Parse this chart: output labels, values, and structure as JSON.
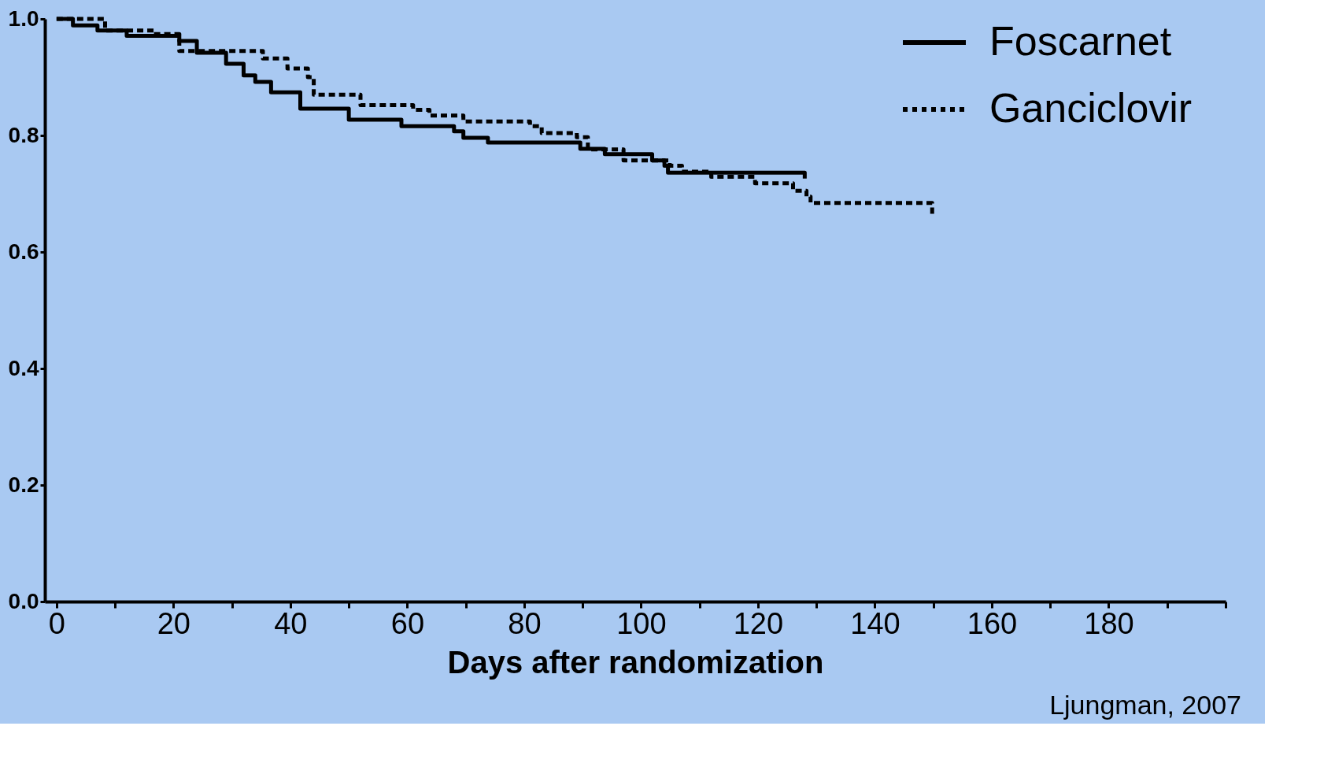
{
  "chart_data": {
    "type": "step",
    "xlabel": "Days after randomization",
    "xlim": [
      -2,
      200
    ],
    "xticks": [
      0,
      {
        "value": 10,
        "label": null
      },
      20,
      {
        "value": 30,
        "label": null
      },
      40,
      {
        "value": 50,
        "label": null
      },
      60,
      {
        "value": 70,
        "label": null
      },
      80,
      {
        "value": 90,
        "label": null
      },
      100,
      {
        "value": 110,
        "label": null
      },
      120,
      {
        "value": 130,
        "label": null
      },
      140,
      {
        "value": 150,
        "label": null
      },
      160,
      {
        "value": 170,
        "label": null
      },
      180,
      {
        "value": 190,
        "label": null
      },
      {
        "value": 200,
        "label": null
      }
    ],
    "ylim": [
      0,
      1.0
    ],
    "yticks": [
      {
        "value": 0,
        "label": "0.0"
      },
      0.2,
      0.4,
      0.6,
      0.8,
      {
        "value": 1,
        "label": "1.0"
      }
    ],
    "grid": false,
    "legend": "top right",
    "annotations": [
      "Ljungman, 2007"
    ],
    "series": [
      {
        "name": "Foscarnet",
        "color": "#000000",
        "line_style": "solid",
        "x": [
          0,
          2.8,
          7,
          12,
          21,
          24,
          29,
          32,
          34,
          36.7,
          41.7,
          50,
          59,
          68,
          69.6,
          73.8,
          89.6,
          93.8,
          101.9,
          104,
          104.6,
          128,
          128
        ],
        "values": [
          1.0,
          0.989,
          0.98,
          0.971,
          0.962,
          0.942,
          0.923,
          0.903,
          0.892,
          0.874,
          0.846,
          0.827,
          0.816,
          0.807,
          0.796,
          0.788,
          0.777,
          0.768,
          0.757,
          0.748,
          0.736,
          0.736,
          0.726
        ]
      },
      {
        "name": "Ganciclovir",
        "color": "#000000",
        "line_style": "dashed",
        "x": [
          0,
          8.3,
          17,
          21,
          35.3,
          39.5,
          43,
          44,
          52,
          61,
          63.8,
          69.6,
          81,
          83,
          89,
          90.9,
          97,
          104.9,
          107,
          112,
          119.5,
          126,
          128.3,
          129,
          149.8,
          149.8
        ],
        "values": [
          1.0,
          0.98,
          0.974,
          0.945,
          0.932,
          0.915,
          0.9,
          0.87,
          0.852,
          0.844,
          0.834,
          0.824,
          0.816,
          0.804,
          0.797,
          0.776,
          0.757,
          0.748,
          0.738,
          0.729,
          0.718,
          0.705,
          0.695,
          0.684,
          0.684,
          0.66
        ]
      }
    ]
  }
}
